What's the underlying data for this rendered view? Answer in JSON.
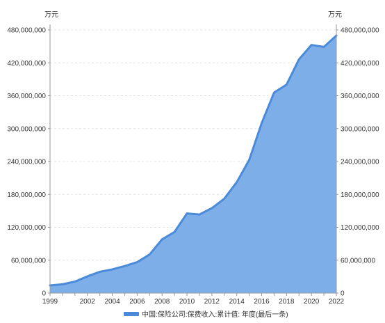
{
  "chart_data": {
    "type": "area",
    "unit_left": "万元",
    "unit_right": "万元",
    "x": [
      1999,
      2000,
      2001,
      2002,
      2003,
      2004,
      2005,
      2006,
      2007,
      2008,
      2009,
      2010,
      2011,
      2012,
      2013,
      2014,
      2015,
      2016,
      2017,
      2018,
      2019,
      2020,
      2021,
      2022
    ],
    "x_ticks": [
      "1999",
      "2002",
      "2004",
      "2006",
      "2008",
      "2010",
      "2012",
      "2014",
      "2016",
      "2018",
      "2020",
      "2022"
    ],
    "xlim": [
      1999,
      2022
    ],
    "y_ticks": [
      "0",
      "60,000,000",
      "120,000,000",
      "180,000,000",
      "240,000,000",
      "300,000,000",
      "360,000,000",
      "420,000,000",
      "480,000,000"
    ],
    "ylim": [
      0,
      480000000
    ],
    "grid": true,
    "series": [
      {
        "name": "中国:保险公司:保费收入:累计值: 年度(最后一条)",
        "color": "#4a8ad8",
        "fill": "#7daee8",
        "values": [
          14000000,
          16000000,
          21000000,
          30500000,
          38800000,
          43200000,
          49300000,
          56400000,
          70400000,
          98000000,
          111400000,
          145300000,
          143400000,
          154900000,
          172200000,
          202300000,
          242800000,
          309900000,
          365800000,
          380200000,
          426400000,
          452600000,
          449000000,
          469700000
        ]
      }
    ],
    "legend_position": "bottom-center"
  }
}
